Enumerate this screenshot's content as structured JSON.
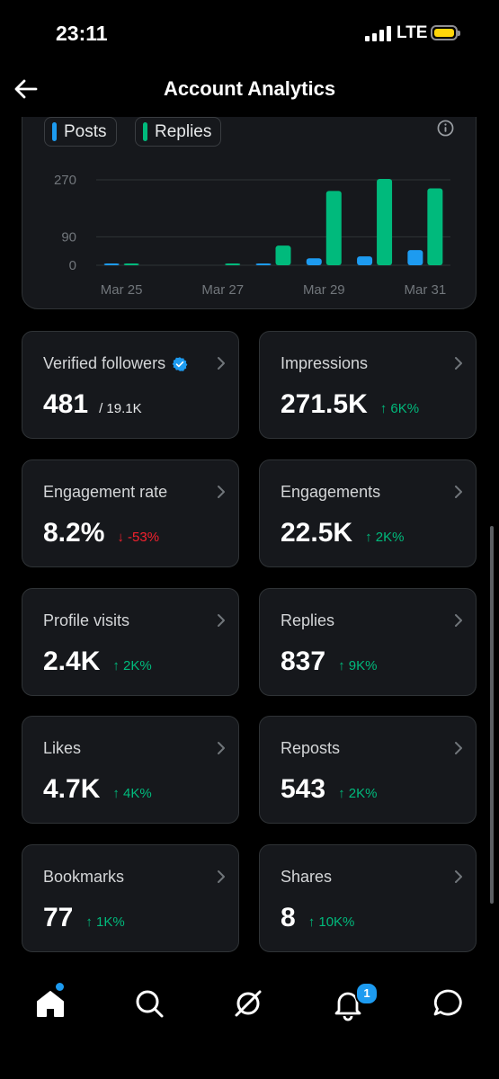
{
  "status_bar": {
    "time": "23:11",
    "network": "LTE"
  },
  "header": {
    "title": "Account Analytics"
  },
  "chart": {
    "legend": [
      {
        "label": "Posts",
        "color": "#1d9bf0"
      },
      {
        "label": "Replies",
        "color": "#00ba7c"
      }
    ]
  },
  "chart_data": {
    "type": "bar",
    "categories": [
      "Mar 25",
      "Mar 26",
      "Mar 27",
      "Mar 28",
      "Mar 29",
      "Mar 30",
      "Mar 31"
    ],
    "x_tick_labels": [
      "Mar 25",
      "Mar 27",
      "Mar 29",
      "Mar 31"
    ],
    "y_ticks": [
      "270",
      "90",
      "0"
    ],
    "ylim": [
      0,
      270
    ],
    "grid": true,
    "series": [
      {
        "name": "Posts",
        "color": "#1d9bf0",
        "values": [
          2,
          0,
          0,
          2,
          22,
          28,
          48
        ]
      },
      {
        "name": "Replies",
        "color": "#00ba7c",
        "values": [
          2,
          0,
          2,
          62,
          235,
          273,
          243
        ]
      }
    ],
    "legend_position": "top-left"
  },
  "stats": [
    {
      "label": "Verified followers",
      "value": "481",
      "sub": "/ 19.1K",
      "verified": true
    },
    {
      "label": "Impressions",
      "value": "271.5K",
      "delta": "↑ 6K%",
      "trend": "up"
    },
    {
      "label": "Engagement rate",
      "value": "8.2%",
      "delta": "↓ -53%",
      "trend": "down"
    },
    {
      "label": "Engagements",
      "value": "22.5K",
      "delta": "↑ 2K%",
      "trend": "up"
    },
    {
      "label": "Profile visits",
      "value": "2.4K",
      "delta": "↑ 2K%",
      "trend": "up"
    },
    {
      "label": "Replies",
      "value": "837",
      "delta": "↑ 9K%",
      "trend": "up"
    },
    {
      "label": "Likes",
      "value": "4.7K",
      "delta": "↑ 4K%",
      "trend": "up"
    },
    {
      "label": "Reposts",
      "value": "543",
      "delta": "↑ 2K%",
      "trend": "up"
    },
    {
      "label": "Bookmarks",
      "value": "77",
      "delta": "↑ 1K%",
      "trend": "up"
    },
    {
      "label": "Shares",
      "value": "8",
      "delta": "↑ 10K%",
      "trend": "up"
    }
  ],
  "bottom_nav": {
    "items": [
      {
        "icon": "home-icon"
      },
      {
        "icon": "search-icon"
      },
      {
        "icon": "grok-icon"
      },
      {
        "icon": "notifications-icon"
      },
      {
        "icon": "messages-icon"
      }
    ],
    "notification_count": "1"
  }
}
